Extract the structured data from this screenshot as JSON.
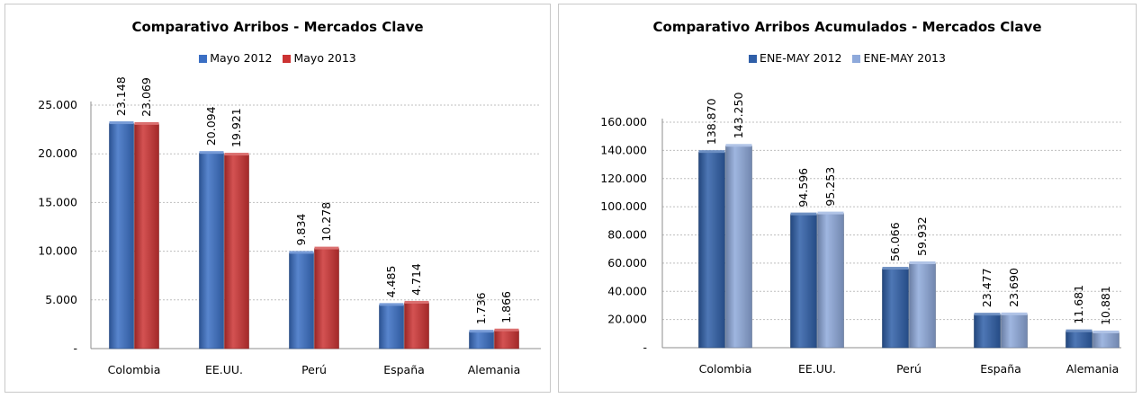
{
  "chart_data": [
    {
      "type": "bar",
      "title": "Comparativo Arribos - Mercados Clave",
      "categories": [
        "Colombia",
        "EE.UU.",
        "Perú",
        "España",
        "Alemania"
      ],
      "series": [
        {
          "name": "Mayo 2012",
          "values": [
            23148,
            20094,
            9834,
            4485,
            1736
          ],
          "labels": [
            "23.148",
            "20.094",
            "9.834",
            "4.485",
            "1.736"
          ],
          "color": "#3b6fc4"
        },
        {
          "name": "Mayo 2013",
          "values": [
            23069,
            19921,
            10278,
            4714,
            1866
          ],
          "labels": [
            "23.069",
            "19.921",
            "10.278",
            "4.714",
            "1.866"
          ],
          "color": "#cc3333"
        }
      ],
      "ylim": [
        0,
        25000
      ],
      "yticks": [
        0,
        5000,
        10000,
        15000,
        20000,
        25000
      ],
      "ytick_labels": [
        "-",
        "5.000",
        "10.000",
        "15.000",
        "20.000",
        "25.000"
      ],
      "grid": true,
      "legend_position": "top"
    },
    {
      "type": "bar",
      "title": "Comparativo Arribos Acumulados - Mercados Clave",
      "categories": [
        "Colombia",
        "EE.UU.",
        "Perú",
        "España",
        "Alemania"
      ],
      "series": [
        {
          "name": "ENE-MAY 2012",
          "values": [
            138870,
            94596,
            56066,
            23477,
            11681
          ],
          "labels": [
            "138.870",
            "94.596",
            "56.066",
            "23.477",
            "11.681"
          ],
          "color": "#2f5fa8"
        },
        {
          "name": "ENE-MAY 2013",
          "values": [
            143250,
            95253,
            59932,
            23690,
            10881
          ],
          "labels": [
            "143.250",
            "95.253",
            "59.932",
            "23.690",
            "10.881"
          ],
          "color": "#8ea9db"
        }
      ],
      "ylim": [
        0,
        160000
      ],
      "yticks": [
        0,
        20000,
        40000,
        60000,
        80000,
        100000,
        120000,
        140000,
        160000
      ],
      "ytick_labels": [
        "-",
        "20.000",
        "40.000",
        "60.000",
        "80.000",
        "100.000",
        "120.000",
        "140.000",
        "160.000"
      ],
      "grid": true,
      "legend_position": "top"
    }
  ]
}
